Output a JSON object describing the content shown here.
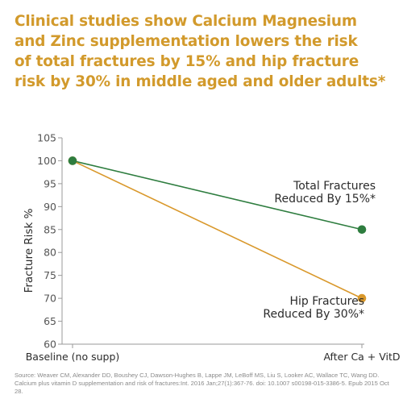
{
  "headline": [
    "Clinical studies show Calcium Magnesium",
    "and Zinc supplementation lowers the risk",
    "of total fractures by 15% and hip fracture",
    "risk by 30% in middle aged and older adults*"
  ],
  "colors": {
    "headline": "#d29a2c",
    "total_series": "#2e7d3f",
    "hip_series": "#d9982b",
    "axis": "#9a9a9a",
    "text": "#2b2b2b"
  },
  "chart_data": {
    "type": "line",
    "categories": [
      "Baseline (no supp)",
      "After Ca + VitD"
    ],
    "ylabel": "Fracture Risk %",
    "xlabel": "",
    "ylim": [
      60,
      105
    ],
    "yticks": [
      "105",
      "100",
      "95",
      "90",
      "85",
      "80",
      "75",
      "70",
      "65",
      "60"
    ],
    "grid": false,
    "series": [
      {
        "key": "total",
        "values": [
          100,
          85
        ],
        "color": "#2e7d3f",
        "annotation": [
          "Total Fractures",
          "Reduced By 15%*"
        ]
      },
      {
        "key": "hip",
        "values": [
          100,
          70
        ],
        "color": "#d9982b",
        "annotation": [
          "Hip Fractures",
          "Reduced By 30%*"
        ]
      }
    ]
  },
  "source": "Source: Weaver CM, Alexander DD, Boushey CJ, Dawson-Hughes B, Lappe JM, LeBoff MS, Liu S, Looker AC, Wallace TC, Wang DD. Calcium plus vitamin D supplementation and risk of fractures:Int. 2016 Jan;27(1):367-76. doi: 10.1007 s00198-015-3386-5. Epub 2015 Oct 28."
}
